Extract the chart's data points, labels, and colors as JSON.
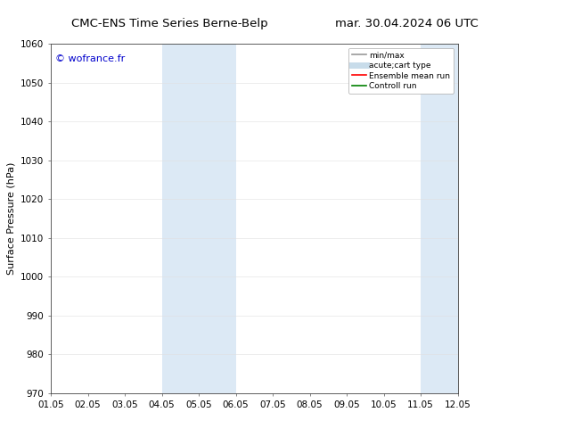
{
  "title_left": "CMC-ENS Time Series Berne-Belp",
  "title_right": "mar. 30.04.2024 06 UTC",
  "ylabel": "Surface Pressure (hPa)",
  "watermark": "© wofrance.fr",
  "watermark_color": "#0000cc",
  "ylim": [
    970,
    1060
  ],
  "yticks": [
    970,
    980,
    990,
    1000,
    1010,
    1020,
    1030,
    1040,
    1050,
    1060
  ],
  "xlim": [
    0,
    11
  ],
  "xtick_labels": [
    "01.05",
    "02.05",
    "03.05",
    "04.05",
    "05.05",
    "06.05",
    "07.05",
    "08.05",
    "09.05",
    "10.05",
    "11.05",
    "12.05"
  ],
  "xtick_positions": [
    0,
    1,
    2,
    3,
    4,
    5,
    6,
    7,
    8,
    9,
    10,
    11
  ],
  "shaded_regions": [
    {
      "xmin": 3,
      "xmax": 5,
      "color": "#dce9f5"
    },
    {
      "xmin": 10,
      "xmax": 11,
      "color": "#dce9f5"
    }
  ],
  "legend_items": [
    {
      "label": "min/max",
      "color": "#999999",
      "lw": 1.2,
      "style": "solid"
    },
    {
      "label": "acute;cart type",
      "color": "#c8dcea",
      "lw": 5,
      "style": "solid"
    },
    {
      "label": "Ensemble mean run",
      "color": "#ff0000",
      "lw": 1.2,
      "style": "solid"
    },
    {
      "label": "Controll run",
      "color": "#008000",
      "lw": 1.2,
      "style": "solid"
    }
  ],
  "bg_color": "#ffffff",
  "title_fontsize": 9.5,
  "tick_fontsize": 7.5,
  "ylabel_fontsize": 8,
  "watermark_fontsize": 8,
  "legend_fontsize": 6.5
}
